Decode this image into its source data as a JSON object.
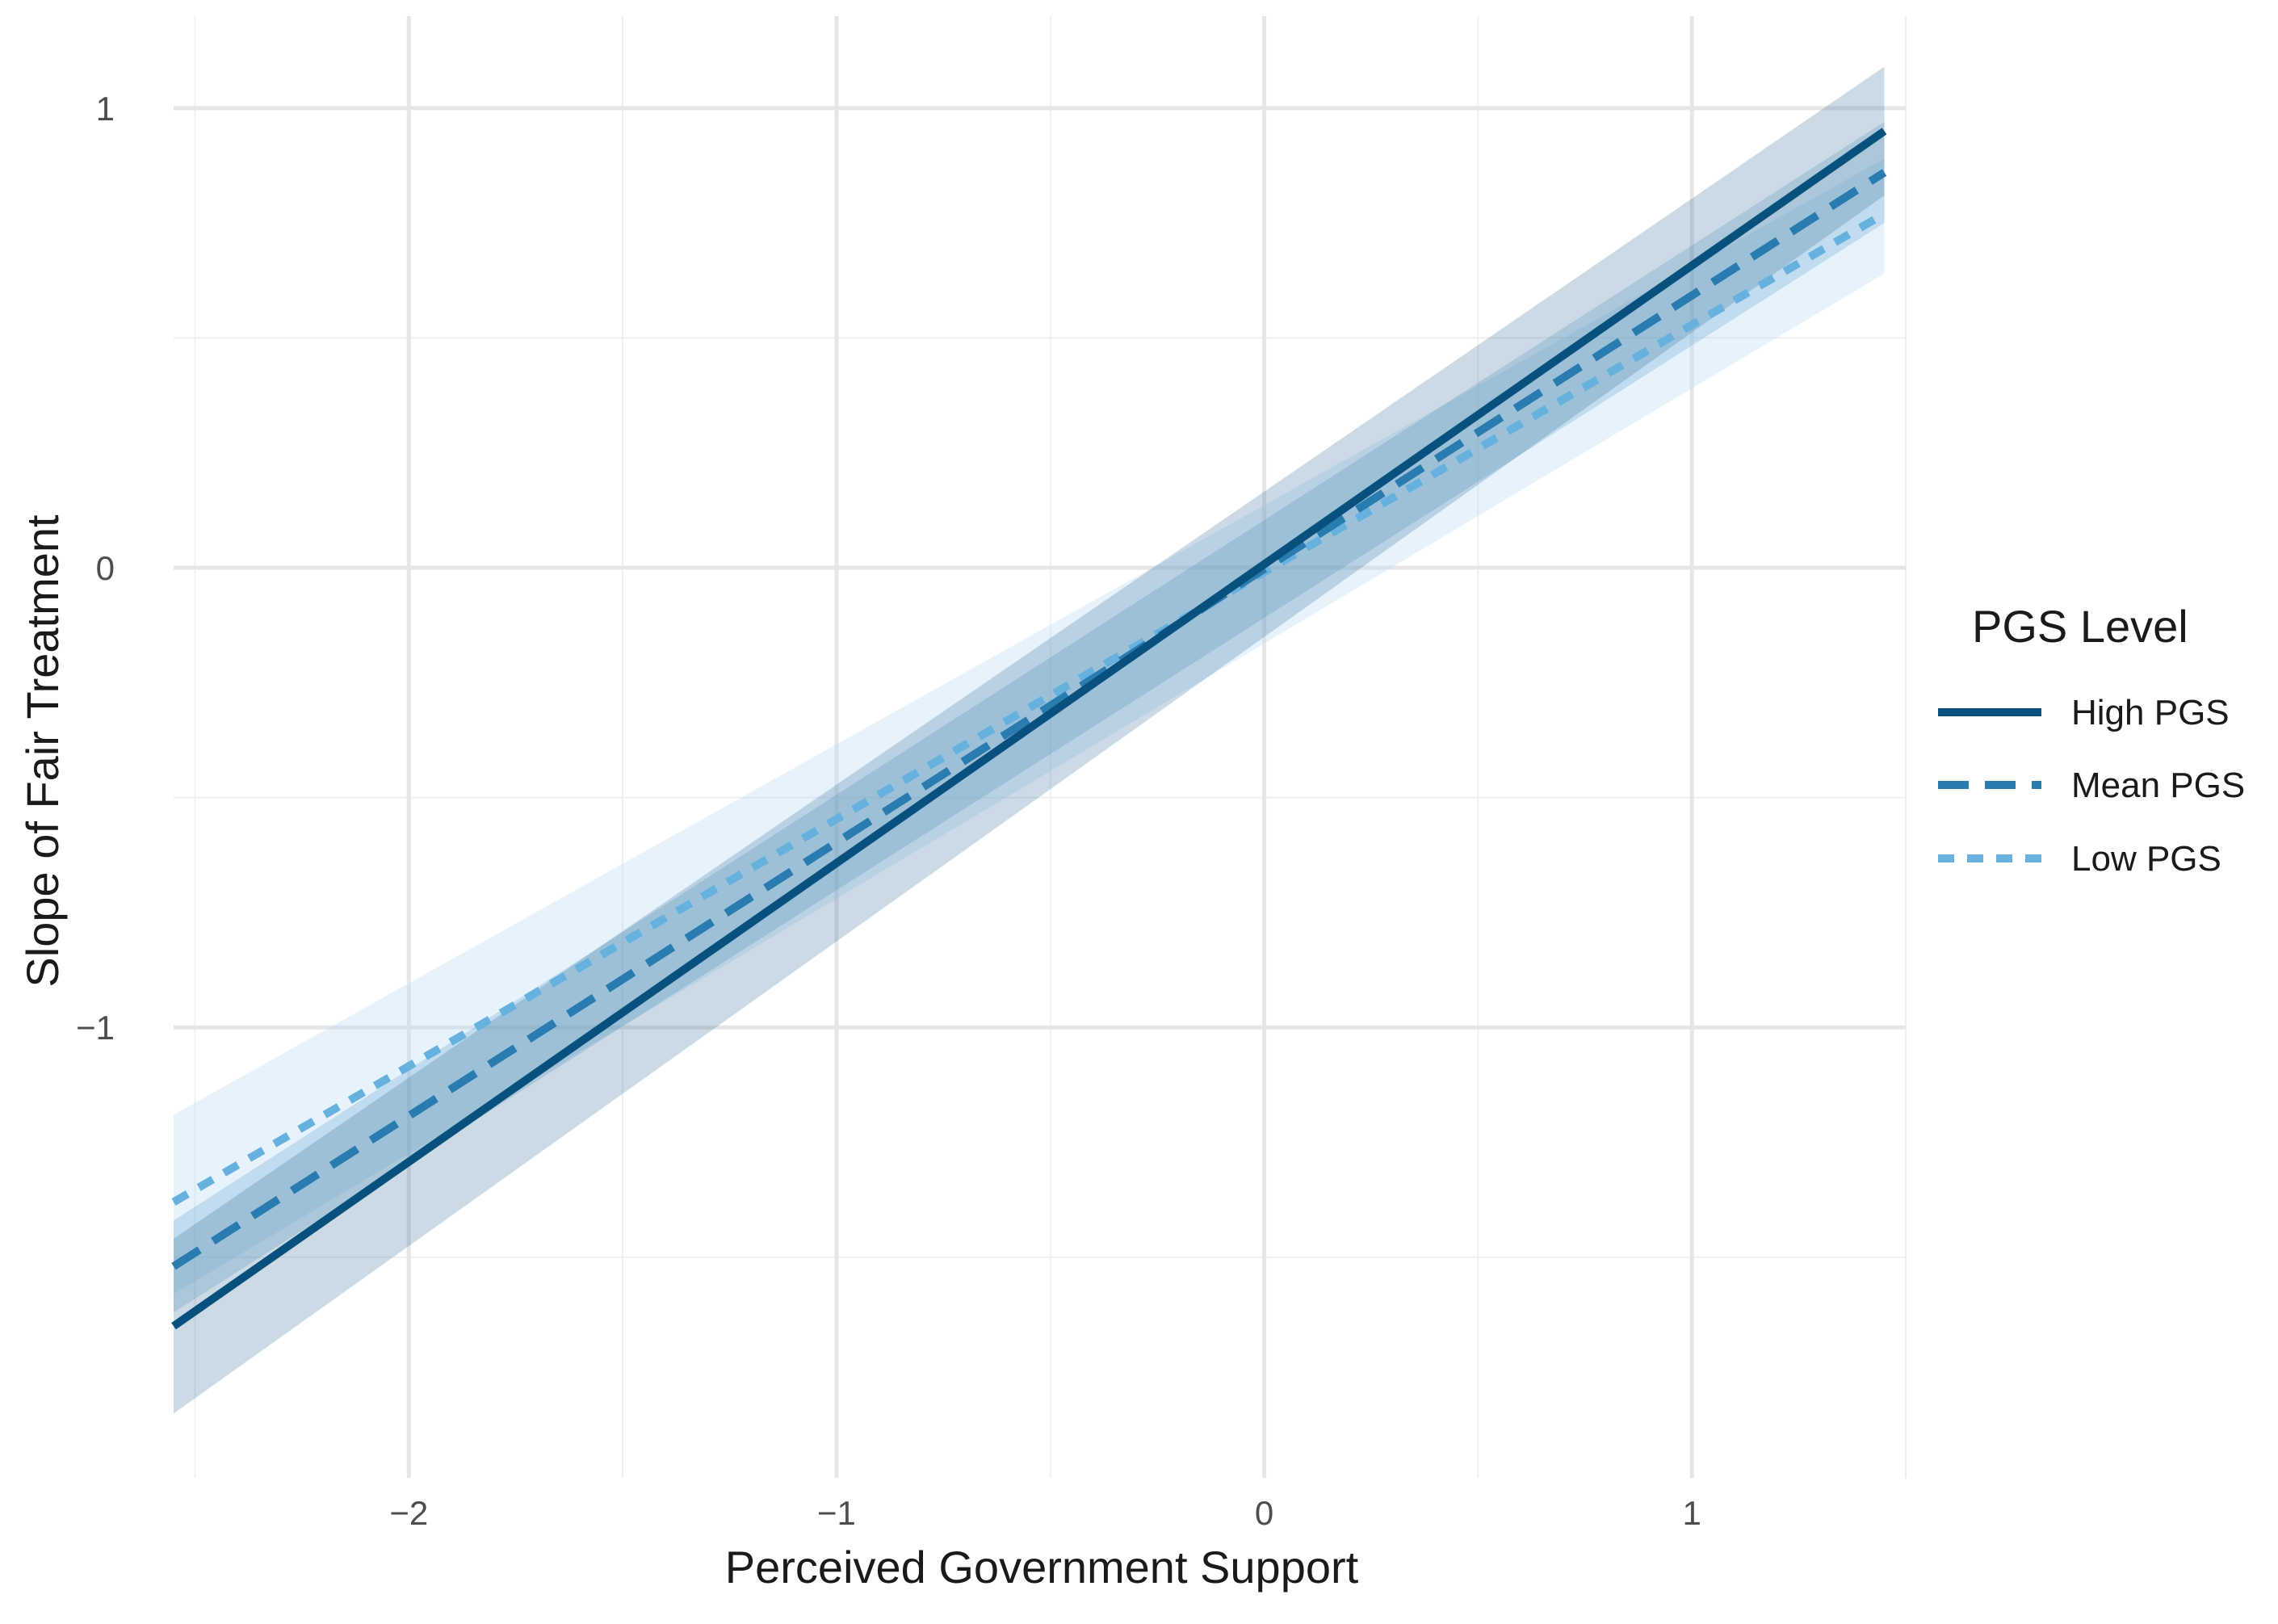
{
  "chart_data": {
    "type": "line",
    "title": "",
    "xlabel": "Perceived Government Support",
    "ylabel": "Slope of Fair Treatment",
    "xlim": [
      -2.55,
      1.5
    ],
    "ylim": [
      -1.98,
      1.2
    ],
    "x_ticks": [
      -2,
      -1,
      0,
      1
    ],
    "x_tick_labels": [
      "−2",
      "−1",
      "0",
      "1"
    ],
    "y_ticks": [
      -1,
      0,
      1
    ],
    "y_tick_labels": [
      "−1",
      "0",
      "1"
    ],
    "grid": true,
    "legend": {
      "title": "PGS Level",
      "position": "right"
    },
    "series": [
      {
        "name": "High PGS",
        "style": "solid",
        "color": "#08517e",
        "band_color": "#2e6a95",
        "band_opacity": 0.25,
        "x": [
          -2.55,
          1.45
        ],
        "y": [
          -1.65,
          0.95
        ],
        "band_lower": [
          -1.84,
          0.81
        ],
        "band_upper": [
          -1.46,
          1.09
        ]
      },
      {
        "name": "Mean PGS",
        "style": "dashed",
        "color": "#2a7cb0",
        "band_color": "#3d8bc0",
        "band_opacity": 0.22,
        "x": [
          -2.55,
          1.45
        ],
        "y": [
          -1.52,
          0.86
        ],
        "band_lower": [
          -1.62,
          0.75
        ],
        "band_upper": [
          -1.42,
          0.97
        ]
      },
      {
        "name": "Low PGS",
        "style": "dotted",
        "color": "#66b1de",
        "band_color": "#b9dcf5",
        "band_opacity": 0.35,
        "x": [
          -2.55,
          1.45
        ],
        "y": [
          -1.38,
          0.77
        ],
        "band_lower": [
          -1.58,
          0.64
        ],
        "band_upper": [
          -1.19,
          0.89
        ]
      }
    ]
  }
}
